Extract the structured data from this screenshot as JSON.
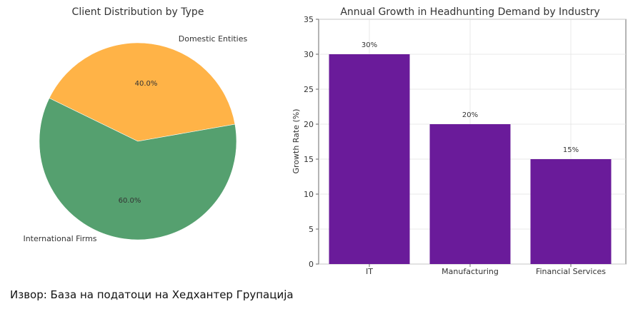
{
  "chart_data": [
    {
      "type": "pie",
      "title": "Client Distribution by Type",
      "categories": [
        "Domestic Entities",
        "International Firms"
      ],
      "values": [
        40.0,
        60.0
      ],
      "value_labels": [
        "40.0%",
        "60.0%"
      ],
      "colors": [
        "#ffb347",
        "#55a06f"
      ],
      "legend": "none"
    },
    {
      "type": "bar",
      "title": "Annual Growth in Headhunting Demand by Industry",
      "categories": [
        "IT",
        "Manufacturing",
        "Financial Services"
      ],
      "values": [
        30,
        20,
        15
      ],
      "value_labels": [
        "30%",
        "20%",
        "15%"
      ],
      "xlabel": "",
      "ylabel": "Growth Rate (%)",
      "ylim": [
        0,
        35
      ],
      "yticks": [
        0,
        5,
        10,
        15,
        20,
        25,
        30,
        35
      ],
      "ytick_labels": [
        "0",
        "5",
        "10",
        "15",
        "20",
        "25",
        "30",
        "35"
      ],
      "grid": true,
      "color": "#6a1b9a"
    }
  ],
  "source": "Извор: База на податоци на Хедхантер Групација"
}
